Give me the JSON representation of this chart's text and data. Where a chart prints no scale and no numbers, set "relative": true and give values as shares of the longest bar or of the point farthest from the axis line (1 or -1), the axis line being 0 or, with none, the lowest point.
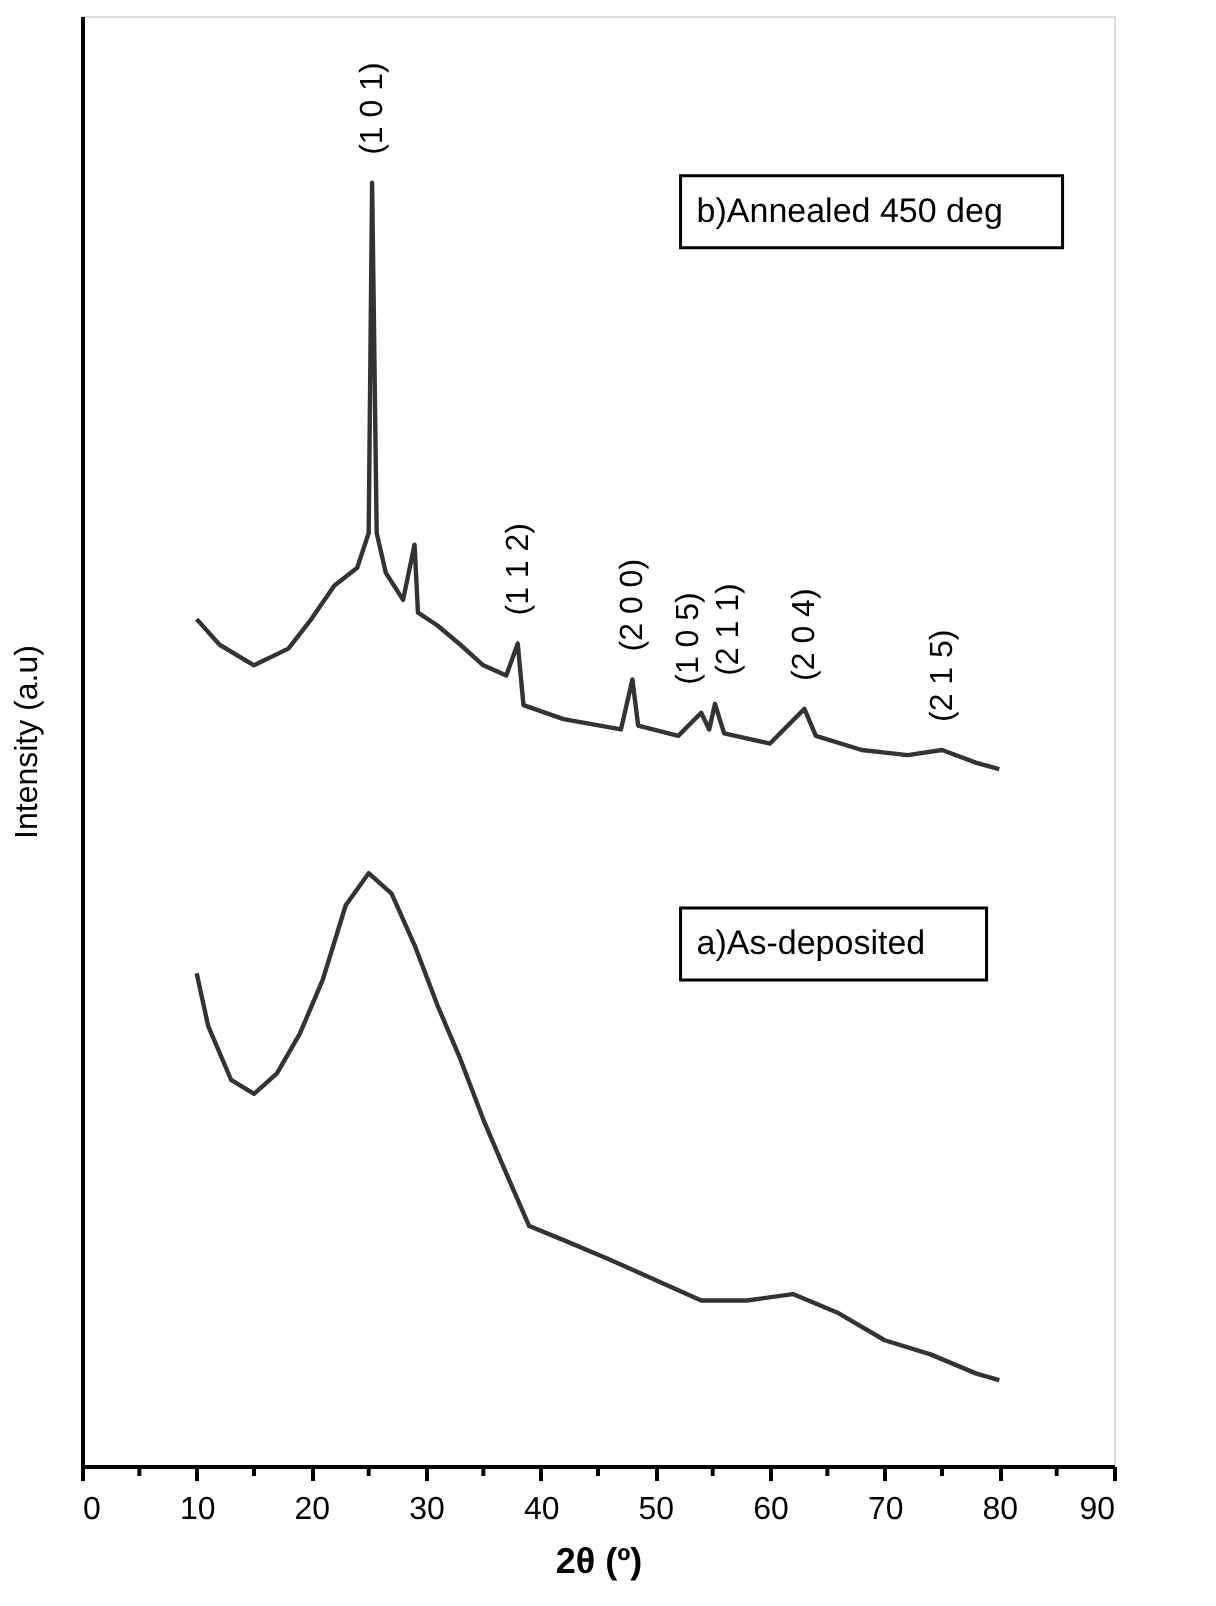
{
  "chart_data": {
    "type": "line",
    "relative": true,
    "xlabel": "2θ (º)",
    "ylabel": "Intensity (a.u)",
    "xlim": [
      0,
      90
    ],
    "xticks": [
      0,
      {
        "value": 5,
        "label": null
      },
      10,
      {
        "value": 15,
        "label": null
      },
      20,
      {
        "value": 25,
        "label": null
      },
      30,
      {
        "value": 35,
        "label": null
      },
      40,
      {
        "value": 45,
        "label": null
      },
      50,
      {
        "value": 55,
        "label": null
      },
      60,
      {
        "value": 65,
        "label": null
      },
      70,
      {
        "value": 75,
        "label": null
      },
      80,
      {
        "value": 85,
        "label": null
      },
      90
    ],
    "series": [
      {
        "color": "#333333",
        "x": [
          10,
          12,
          15,
          18,
          20,
          22,
          24,
          25,
          25.3,
          25.7,
          26.5,
          28,
          29,
          29.3,
          31,
          33,
          35,
          37,
          38,
          38.5,
          42,
          47,
          48,
          48.5,
          52,
          54,
          54.7,
          55.2,
          56,
          60,
          63,
          64,
          68,
          72,
          75,
          78,
          80
        ],
        "values": [
          0.66,
          0.64,
          0.624,
          0.637,
          0.66,
          0.686,
          0.7,
          0.727,
          1.0,
          0.727,
          0.696,
          0.675,
          0.718,
          0.665,
          0.655,
          0.64,
          0.624,
          0.616,
          0.641,
          0.593,
          0.582,
          0.574,
          0.613,
          0.577,
          0.569,
          0.587,
          0.574,
          0.594,
          0.571,
          0.563,
          0.59,
          0.569,
          0.558,
          0.554,
          0.558,
          0.548,
          0.543
        ]
      },
      {
        "color": "#333333",
        "x": [
          10,
          11,
          13,
          15,
          17,
          19,
          21,
          23,
          25,
          27,
          29,
          31,
          33,
          35,
          37,
          39,
          42,
          46,
          50,
          54,
          58,
          62,
          66,
          70,
          74,
          78,
          80
        ],
        "values": [
          0.384,
          0.343,
          0.301,
          0.29,
          0.306,
          0.337,
          0.379,
          0.437,
          0.462,
          0.446,
          0.406,
          0.359,
          0.317,
          0.27,
          0.228,
          0.187,
          0.176,
          0.161,
          0.145,
          0.129,
          0.129,
          0.134,
          0.119,
          0.098,
          0.087,
          0.072,
          0.067
        ]
      }
    ],
    "annotations": [
      "b)Annealed 450 deg",
      "a)As-deposited",
      {
        "text": "(1 0 1)",
        "x": 25.3,
        "y": 1.0
      },
      {
        "text": "(1 1 2)",
        "x": 38,
        "y": 0.641
      },
      {
        "text": "(2 0 0)",
        "x": 48,
        "y": 0.613
      },
      {
        "text": "(1 0 5)",
        "x": 54,
        "y": 0.587
      },
      {
        "text": "(2 1 1)",
        "x": 55.2,
        "y": 0.594
      },
      {
        "text": "(2 0 4)",
        "x": 63,
        "y": 0.59
      },
      {
        "text": "(2 1 5)",
        "x": 75,
        "y": 0.558
      }
    ],
    "grid": false
  }
}
